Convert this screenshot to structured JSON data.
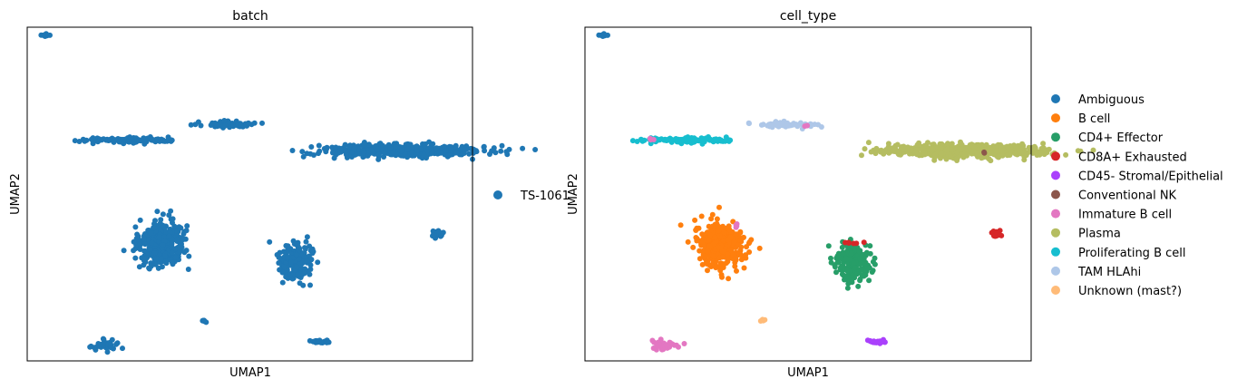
{
  "chart_data": [
    {
      "type": "scatter",
      "title": "batch",
      "xlabel": "UMAP1",
      "ylabel": "UMAP2",
      "ticks": "none",
      "grid": false,
      "legend_position": "right",
      "legend": [
        {
          "label": "TS-1061",
          "color": "#1f77b4"
        }
      ],
      "clusters": [
        {
          "category": "TS-1061",
          "x": 0.1,
          "y": 9.62,
          "sx": 0.03,
          "sy": 0.02,
          "n": 8
        },
        {
          "category": "TS-1061",
          "x": 1.6,
          "y": 6.6,
          "sx": 0.42,
          "sy": 0.04,
          "n": 110
        },
        {
          "category": "TS-1061",
          "x": 3.43,
          "y": 7.05,
          "sx": 0.25,
          "sy": 0.04,
          "n": 60
        },
        {
          "category": "TS-1061",
          "x": 6.65,
          "y": 6.3,
          "sx": 0.75,
          "sy": 0.09,
          "n": 500
        },
        {
          "category": "TS-1061",
          "x": 2.2,
          "y": 3.6,
          "sx": 0.2,
          "sy": 0.3,
          "n": 380
        },
        {
          "category": "TS-1061",
          "x": 4.65,
          "y": 3.1,
          "sx": 0.16,
          "sy": 0.26,
          "n": 200
        },
        {
          "category": "TS-1061",
          "x": 7.25,
          "y": 3.9,
          "sx": 0.05,
          "sy": 0.06,
          "n": 25
        },
        {
          "category": "TS-1061",
          "x": 3.0,
          "y": 1.4,
          "sx": 0.02,
          "sy": 0.02,
          "n": 6
        },
        {
          "category": "TS-1061",
          "x": 1.2,
          "y": 0.7,
          "sx": 0.14,
          "sy": 0.07,
          "n": 40
        },
        {
          "category": "TS-1061",
          "x": 5.1,
          "y": 0.8,
          "sx": 0.1,
          "sy": 0.03,
          "n": 20
        }
      ]
    },
    {
      "type": "scatter",
      "title": "cell_type",
      "xlabel": "UMAP1",
      "ylabel": "UMAP2",
      "ticks": "none",
      "grid": false,
      "legend_position": "right",
      "legend": [
        {
          "label": "Ambiguous",
          "color": "#1f77b4"
        },
        {
          "label": "B cell",
          "color": "#ff7f0e"
        },
        {
          "label": "CD4+ Effector",
          "color": "#279e68"
        },
        {
          "label": "CD8A+ Exhausted",
          "color": "#d62728"
        },
        {
          "label": "CD45- Stromal/Epithelial",
          "color": "#aa40fc"
        },
        {
          "label": "Conventional NK",
          "color": "#8c564b"
        },
        {
          "label": "Immature B cell",
          "color": "#e377c2"
        },
        {
          "label": "Plasma",
          "color": "#b5bd61"
        },
        {
          "label": "Proliferating B cell",
          "color": "#17becf"
        },
        {
          "label": "TAM HLAhi",
          "color": "#aec7e8"
        },
        {
          "label": "Unknown (mast?)",
          "color": "#ffbb78"
        }
      ],
      "clusters": [
        {
          "category": "Ambiguous",
          "x": 0.1,
          "y": 9.62,
          "sx": 0.03,
          "sy": 0.02,
          "n": 8
        },
        {
          "category": "Proliferating B cell",
          "x": 1.6,
          "y": 6.6,
          "sx": 0.42,
          "sy": 0.04,
          "n": 110
        },
        {
          "category": "Immature B cell",
          "x": 0.95,
          "y": 6.6,
          "sx": 0.03,
          "sy": 0.03,
          "n": 4
        },
        {
          "category": "TAM HLAhi",
          "x": 3.43,
          "y": 7.05,
          "sx": 0.25,
          "sy": 0.04,
          "n": 60
        },
        {
          "category": "Immature B cell",
          "x": 3.8,
          "y": 7.02,
          "sx": 0.02,
          "sy": 0.02,
          "n": 3
        },
        {
          "category": "Plasma",
          "x": 6.65,
          "y": 6.3,
          "sx": 0.75,
          "sy": 0.09,
          "n": 500
        },
        {
          "category": "Conventional NK",
          "x": 7.05,
          "y": 6.25,
          "sx": 0.01,
          "sy": 0.01,
          "n": 2
        },
        {
          "category": "B cell",
          "x": 2.2,
          "y": 3.6,
          "sx": 0.2,
          "sy": 0.3,
          "n": 380
        },
        {
          "category": "Immature B cell",
          "x": 2.5,
          "y": 4.15,
          "sx": 0.03,
          "sy": 0.03,
          "n": 4
        },
        {
          "category": "CD4+ Effector",
          "x": 4.65,
          "y": 3.1,
          "sx": 0.16,
          "sy": 0.26,
          "n": 200
        },
        {
          "category": "CD8A+ Exhausted",
          "x": 4.6,
          "y": 3.65,
          "sx": 0.18,
          "sy": 0.03,
          "n": 6
        },
        {
          "category": "CD8A+ Exhausted",
          "x": 7.25,
          "y": 3.9,
          "sx": 0.05,
          "sy": 0.06,
          "n": 25
        },
        {
          "category": "Unknown (mast?)",
          "x": 3.0,
          "y": 1.4,
          "sx": 0.02,
          "sy": 0.02,
          "n": 6
        },
        {
          "category": "Immature B cell",
          "x": 1.2,
          "y": 0.7,
          "sx": 0.14,
          "sy": 0.07,
          "n": 40
        },
        {
          "category": "CD45- Stromal/Epithelial",
          "x": 5.1,
          "y": 0.8,
          "sx": 0.1,
          "sy": 0.03,
          "n": 20
        }
      ]
    }
  ]
}
